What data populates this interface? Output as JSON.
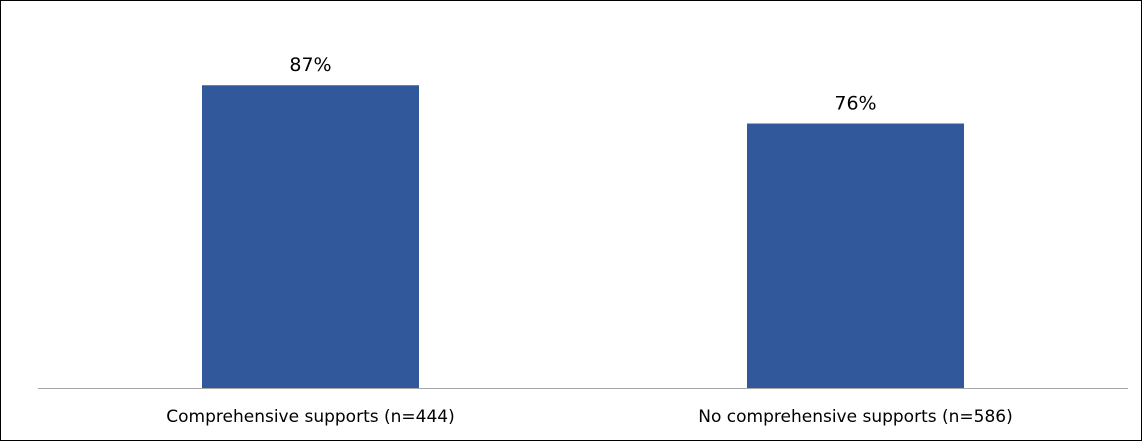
{
  "chart_data": {
    "type": "bar",
    "categories": [
      "Comprehensive supports (n=444)",
      "No comprehensive supports (n=586)"
    ],
    "values": [
      87,
      76
    ],
    "data_labels": [
      "87%",
      "76%"
    ],
    "title": "",
    "xlabel": "",
    "ylabel": "",
    "ylim": [
      0,
      100
    ],
    "grid": false,
    "legend": "none",
    "bar_color": "#30589A",
    "axis_color": "#A6A6A6"
  }
}
